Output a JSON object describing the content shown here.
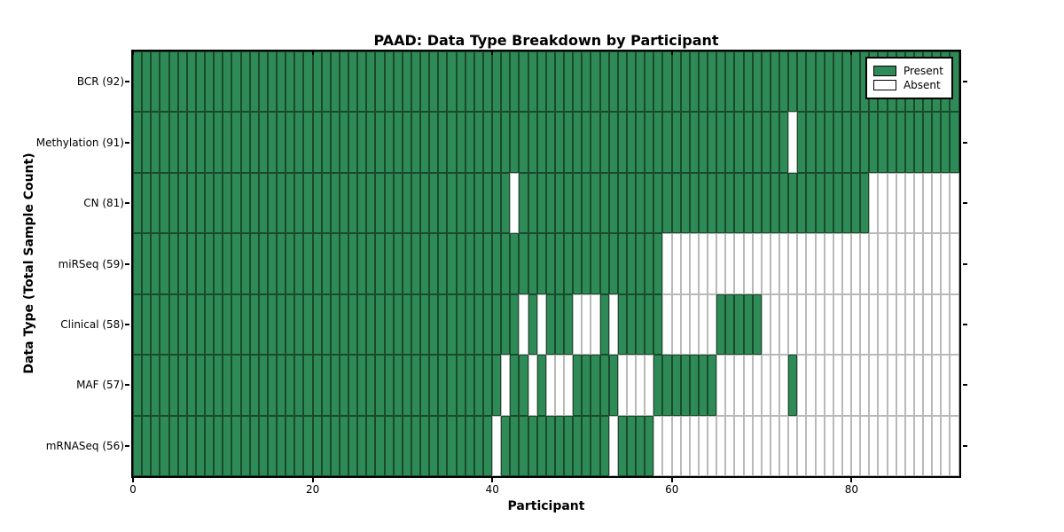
{
  "title": "PAAD: Data Type Breakdown by Participant",
  "xlabel": "Participant",
  "ylabel": "Data Type (Total Sample Count)",
  "legend": {
    "present_label": "Present",
    "absent_label": "Absent"
  },
  "colors": {
    "present": "#2e8b57",
    "present_edge": "#1a4a2c",
    "absent": "#ffffff",
    "absent_edge": "#b9b9b9",
    "frame": "#000000"
  },
  "chart_data": {
    "type": "heatmap",
    "title": "PAAD: Data Type Breakdown by Participant",
    "xlabel": "Participant",
    "ylabel": "Data Type (Total Sample Count)",
    "legend": [
      "Present",
      "Absent"
    ],
    "legend_position": "upper right",
    "n_participants": 92,
    "x_ticks": [
      0,
      20,
      40,
      60,
      80
    ],
    "x_range": [
      0,
      92
    ],
    "cell_values": {
      "present": 1,
      "absent": 0
    },
    "rows": [
      {
        "label": "BCR (92)",
        "name": "BCR",
        "total": 92,
        "absent_participants": []
      },
      {
        "label": "Methylation (91)",
        "name": "Methylation",
        "total": 91,
        "absent_participants": [
          73
        ]
      },
      {
        "label": "CN (81)",
        "name": "CN",
        "total": 81,
        "absent_participants": [
          42,
          82,
          83,
          84,
          85,
          86,
          87,
          88,
          89,
          90,
          91
        ]
      },
      {
        "label": "miRSeq (59)",
        "name": "miRSeq",
        "total": 59,
        "absent_participants": [
          59,
          60,
          61,
          62,
          63,
          64,
          65,
          66,
          67,
          68,
          69,
          70,
          71,
          72,
          73,
          74,
          75,
          76,
          77,
          78,
          79,
          80,
          81,
          82,
          83,
          84,
          85,
          86,
          87,
          88,
          89,
          90,
          91
        ]
      },
      {
        "label": "Clinical (58)",
        "name": "Clinical",
        "total": 58,
        "absent_participants": [
          43,
          45,
          49,
          50,
          51,
          53,
          59,
          60,
          61,
          62,
          63,
          64,
          70,
          71,
          72,
          73,
          74,
          75,
          76,
          77,
          78,
          79,
          80,
          81,
          82,
          83,
          84,
          85,
          86,
          87,
          88,
          89,
          90,
          91
        ]
      },
      {
        "label": "MAF (57)",
        "name": "MAF",
        "total": 57,
        "absent_participants": [
          41,
          44,
          46,
          47,
          48,
          54,
          55,
          56,
          57,
          65,
          66,
          67,
          68,
          69,
          70,
          71,
          72,
          74,
          75,
          76,
          77,
          78,
          79,
          80,
          81,
          82,
          83,
          84,
          85,
          86,
          87,
          88,
          89,
          90,
          91
        ]
      },
      {
        "label": "mRNASeq (56)",
        "name": "mRNASeq",
        "total": 56,
        "absent_participants": [
          40,
          53,
          58,
          59,
          60,
          61,
          62,
          63,
          64,
          65,
          66,
          67,
          68,
          69,
          70,
          71,
          72,
          73,
          74,
          75,
          76,
          77,
          78,
          79,
          80,
          81,
          82,
          83,
          84,
          85,
          86,
          87,
          88,
          89,
          90,
          91
        ]
      }
    ]
  }
}
